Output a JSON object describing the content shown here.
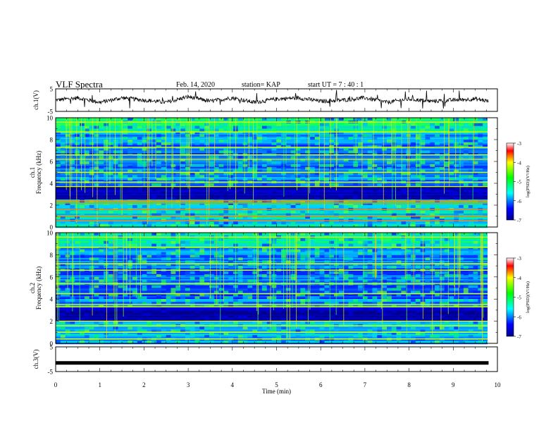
{
  "header": {
    "title": "VLF Spectra",
    "date": "Feb. 14, 2020",
    "station": "station= KAP",
    "start": "start  UT =   7 : 40 : 1"
  },
  "chart_data": [
    {
      "type": "line",
      "panel": "ch1-waveform",
      "ylabel": "ch.1(V)",
      "ylim": [
        -5,
        5
      ],
      "yticks": [
        "5",
        "-5"
      ],
      "xlim": [
        0,
        10
      ],
      "description_series": "noisy voltage trace oscillating roughly between -2 and 2 V",
      "x": [
        0,
        0.5,
        1,
        1.5,
        2,
        2.5,
        3,
        3.5,
        4,
        4.5,
        5,
        5.5,
        6,
        6.5,
        7,
        7.5,
        8,
        8.5,
        9,
        9.5,
        9.8
      ],
      "values": [
        0,
        1,
        -1,
        1,
        0,
        -1,
        1.5,
        -0.5,
        1,
        -1,
        0.5,
        1,
        -0.5,
        0,
        1,
        -1,
        0.5,
        -0.5,
        0,
        0.5,
        -0.5
      ]
    },
    {
      "type": "heatmap",
      "panel": "ch1-spectrogram",
      "ylabel": "ch.1\nFrequency (kHz)",
      "ylabel_line1": "ch.1",
      "ylabel_line2": "Frequency (kHz)",
      "ylim": [
        0,
        10
      ],
      "yticks": [
        "0",
        "2",
        "4",
        "6",
        "8",
        "10"
      ],
      "xlim": [
        0,
        10
      ],
      "colorbar": {
        "label": "log(PSD)(V²/Hz)",
        "range": [
          -7,
          -3
        ],
        "ticks": [
          "-3",
          "-4",
          "-5",
          "-6",
          "-7"
        ]
      },
      "lines_khz": [
        0.6,
        1.0,
        1.6,
        2.2,
        2.4,
        3.7,
        4.1,
        5.0,
        6.2,
        6.6,
        7.3,
        8.7,
        9.6
      ]
    },
    {
      "type": "heatmap",
      "panel": "ch2-spectrogram",
      "ylabel_line1": "ch.2",
      "ylabel_line2": "Frequency (kHz)",
      "ylim": [
        0,
        10
      ],
      "yticks": [
        "0",
        "2",
        "4",
        "6",
        "8",
        "10"
      ],
      "xlim": [
        0,
        10
      ],
      "colorbar": {
        "label": "log(PSD)(V²/Hz)",
        "range": [
          -7,
          -3
        ],
        "ticks": [
          "-3",
          "-4",
          "-5",
          "-6",
          "-7"
        ]
      },
      "lines_khz": [
        0.4,
        1.0,
        1.6,
        2.0,
        3.3,
        3.5,
        4.5,
        5.4,
        6.6,
        7.2,
        8.7,
        9.6
      ]
    },
    {
      "type": "line",
      "panel": "ch3-waveform",
      "ylabel": "ch.3(V)",
      "ylim": [
        -5,
        5
      ],
      "yticks": [
        "5",
        "-5"
      ],
      "xlim": [
        0,
        10
      ],
      "xlabel": "Time  (min)",
      "xticks": [
        "0",
        "1",
        "2",
        "3",
        "4",
        "5",
        "6",
        "7",
        "8",
        "9",
        "10"
      ],
      "x": [
        0,
        9.8
      ],
      "values": [
        -1.5,
        -1.5
      ]
    }
  ]
}
